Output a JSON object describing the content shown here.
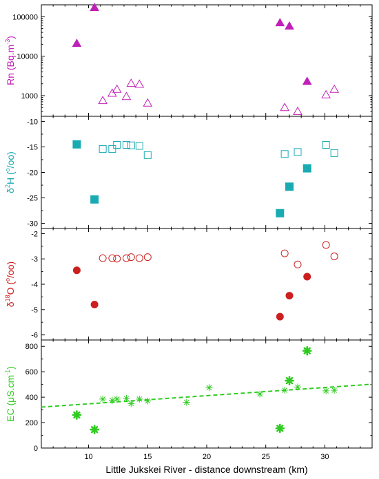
{
  "chart_data": {
    "type": "scatter",
    "xlabel": "Little Jukskei River - distance downstream (km)",
    "xlim": [
      6,
      34
    ],
    "xticks": [
      "10",
      "15",
      "20",
      "25",
      "30"
    ],
    "xtick_values": [
      10,
      15,
      20,
      25,
      30
    ],
    "panels": [
      {
        "id": "rn",
        "ylabel_main": "Rn (Bq.m",
        "ylabel_sup": "-3",
        "ylabel_end": ")",
        "color": "#c020b8",
        "scale": "log",
        "ylim": [
          300,
          200000
        ],
        "yticks": [
          "1000",
          "10000",
          "100000"
        ],
        "ytick_values": [
          1000,
          10000,
          100000
        ],
        "series": [
          {
            "marker": "triangle",
            "filled": true,
            "x": [
              9.0,
              10.5,
              26.2,
              27.0,
              28.5
            ],
            "y": [
              21000,
              170000,
              70000,
              58000,
              2300
            ]
          },
          {
            "marker": "triangle",
            "filled": false,
            "x": [
              11.2,
              12.0,
              12.4,
              13.2,
              13.6,
              14.3,
              15.0,
              26.6,
              27.7,
              30.1,
              30.8
            ],
            "y": [
              750,
              1150,
              1450,
              950,
              2050,
              1950,
              650,
              500,
              400,
              1050,
              1450
            ]
          }
        ]
      },
      {
        "id": "d2h",
        "ylabel_pre": "δ",
        "ylabel_sup1": "2",
        "ylabel_main": "H (",
        "ylabel_sup2": "o",
        "ylabel_end": "/oo)",
        "color": "#1aaab2",
        "scale": "linear",
        "ylim": [
          -31,
          -9
        ],
        "yticks": [
          "-10",
          "-15",
          "-20",
          "-25",
          "-30"
        ],
        "ytick_values": [
          -10,
          -15,
          -20,
          -25,
          -30
        ],
        "series": [
          {
            "marker": "square",
            "filled": true,
            "x": [
              9.0,
              10.5,
              26.2,
              27.0,
              28.5
            ],
            "y": [
              -14.5,
              -25.3,
              -28.0,
              -22.8,
              -19.2
            ]
          },
          {
            "marker": "square",
            "filled": false,
            "x": [
              11.2,
              12.0,
              12.4,
              13.2,
              13.6,
              14.3,
              15.0,
              26.6,
              27.7,
              30.1,
              30.8
            ],
            "y": [
              -15.4,
              -15.4,
              -14.6,
              -14.6,
              -14.7,
              -14.8,
              -16.6,
              -16.4,
              -16.0,
              -14.6,
              -16.2
            ]
          }
        ]
      },
      {
        "id": "d18o",
        "ylabel_pre": "δ",
        "ylabel_sup1": "18",
        "ylabel_main": "O (",
        "ylabel_sup2": "o",
        "ylabel_end": "/oo)",
        "color": "#cc1f1f",
        "scale": "linear",
        "ylim": [
          -6.2,
          -1.8
        ],
        "yticks": [
          "-2",
          "-3",
          "-4",
          "-5",
          "-6"
        ],
        "ytick_values": [
          -2,
          -3,
          -4,
          -5,
          -6
        ],
        "series": [
          {
            "marker": "circle",
            "filled": true,
            "x": [
              9.0,
              10.5,
              26.2,
              27.0,
              28.5
            ],
            "y": [
              -3.45,
              -4.8,
              -5.28,
              -4.45,
              -3.7
            ]
          },
          {
            "marker": "circle",
            "filled": false,
            "x": [
              11.2,
              12.0,
              12.4,
              13.2,
              13.6,
              14.3,
              15.0,
              26.6,
              27.7,
              30.1,
              30.8
            ],
            "y": [
              -2.97,
              -2.97,
              -2.99,
              -2.97,
              -2.93,
              -2.97,
              -2.93,
              -2.78,
              -3.22,
              -2.45,
              -2.9
            ]
          }
        ]
      },
      {
        "id": "ec",
        "ylabel_main": "EC (μS.cm",
        "ylabel_sup": "-1",
        "ylabel_end": ")",
        "color": "#2ecc1f",
        "scale": "linear",
        "ylim": [
          0,
          850
        ],
        "yticks": [
          "0",
          "200",
          "400",
          "600",
          "800"
        ],
        "ytick_values": [
          0,
          200,
          400,
          600,
          800
        ],
        "series": [
          {
            "marker": "star",
            "filled": true,
            "x": [
              9.0,
              10.5,
              26.2,
              27.0,
              28.5
            ],
            "y": [
              260,
              145,
              155,
              530,
              765
            ]
          },
          {
            "marker": "asterisk",
            "filled": false,
            "x": [
              11.2,
              12.0,
              12.4,
              13.2,
              13.6,
              14.3,
              15.0,
              18.3,
              20.2,
              24.5,
              26.6,
              27.7,
              30.1,
              30.8
            ],
            "y": [
              385,
              375,
              385,
              390,
              350,
              385,
              370,
              360,
              475,
              425,
              455,
              480,
              450,
              455
            ]
          }
        ],
        "trendline": {
          "x": [
            6,
            34
          ],
          "y": [
            322,
            502
          ]
        }
      }
    ]
  }
}
